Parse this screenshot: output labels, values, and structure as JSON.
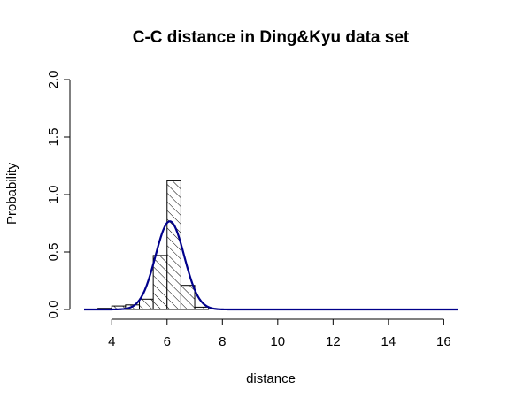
{
  "chart_data": {
    "type": "histogram",
    "title": "C-C distance in Ding&Kyu data set",
    "xlabel": "distance",
    "ylabel": "Probability",
    "xlim": [
      3,
      16.5
    ],
    "ylim": [
      0,
      2.0
    ],
    "x_ticks": [
      4,
      6,
      8,
      10,
      12,
      14,
      16
    ],
    "y_ticks": [
      0.0,
      0.5,
      1.0,
      1.5,
      2.0
    ],
    "y_tick_labels": [
      "0.0",
      "0.5",
      "1.0",
      "1.5",
      "2.0"
    ],
    "bins": [
      {
        "start": 3.5,
        "end": 4.0,
        "density": 0.01
      },
      {
        "start": 4.0,
        "end": 4.5,
        "density": 0.03
      },
      {
        "start": 4.5,
        "end": 5.0,
        "density": 0.04
      },
      {
        "start": 5.0,
        "end": 5.5,
        "density": 0.09
      },
      {
        "start": 5.5,
        "end": 6.0,
        "density": 0.47
      },
      {
        "start": 6.0,
        "end": 6.5,
        "density": 1.12
      },
      {
        "start": 6.5,
        "end": 7.0,
        "density": 0.21
      },
      {
        "start": 7.0,
        "end": 7.5,
        "density": 0.02
      }
    ],
    "bar_fill": "diagonal hatch",
    "density_curve": {
      "type": "normal",
      "mean": 6.1,
      "sd": 0.52,
      "x_range": [
        3,
        16.5
      ],
      "color": "#00008b"
    },
    "grid": false
  }
}
